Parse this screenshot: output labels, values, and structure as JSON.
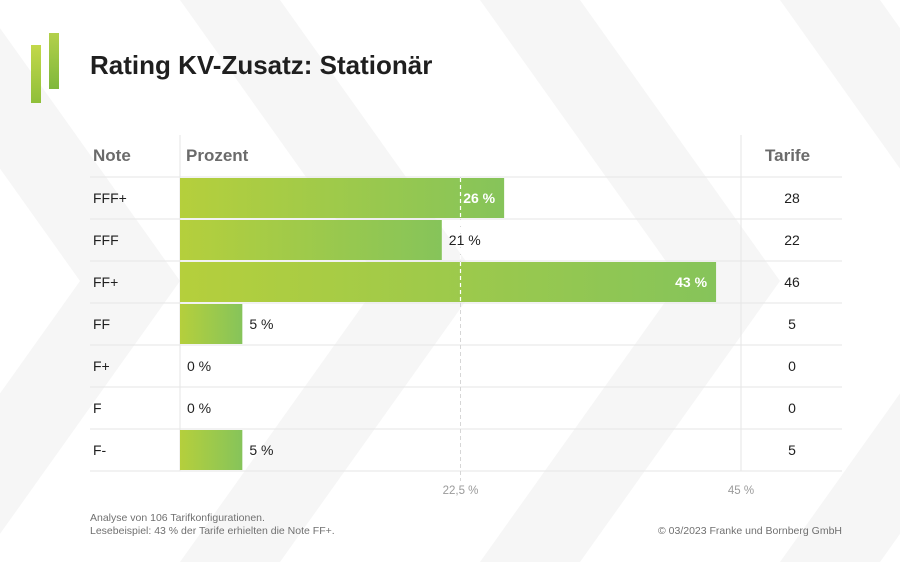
{
  "title": "Rating KV-Zusatz: Stationär",
  "colors": {
    "bar_start": "#b5cf3c",
    "bar_end": "#86c45a",
    "brand_green": "#9bc53d",
    "grid": "#e6e6e6"
  },
  "table": {
    "col_note": "Note",
    "col_prozent": "Prozent",
    "col_tarife": "Tarife"
  },
  "chart_data": {
    "type": "bar",
    "orientation": "horizontal",
    "title": "Rating KV-Zusatz: Stationär",
    "categories": [
      "FFF+",
      "FFF",
      "FF+",
      "FF",
      "F+",
      "F",
      "F-"
    ],
    "values": [
      26,
      21,
      43,
      5,
      0,
      0,
      5
    ],
    "value_labels": [
      "26 %",
      "21 %",
      "43 %",
      "5 %",
      "0 %",
      "0 %",
      "5 %"
    ],
    "tarife": [
      "28",
      "22",
      "46",
      "5",
      "0",
      "0",
      "5"
    ],
    "xlim": [
      0,
      45
    ],
    "ticks": [
      22.5,
      45
    ],
    "tick_labels": [
      "22,5 %",
      "45 %"
    ],
    "unit": "%"
  },
  "footer": {
    "line1": "Analyse von 106 Tarifkonfigurationen.",
    "line2": "Lesebeispiel: 43 % der Tarife erhielten die Note FF+.",
    "copyright": "© 03/2023 Franke und Bornberg GmbH"
  }
}
